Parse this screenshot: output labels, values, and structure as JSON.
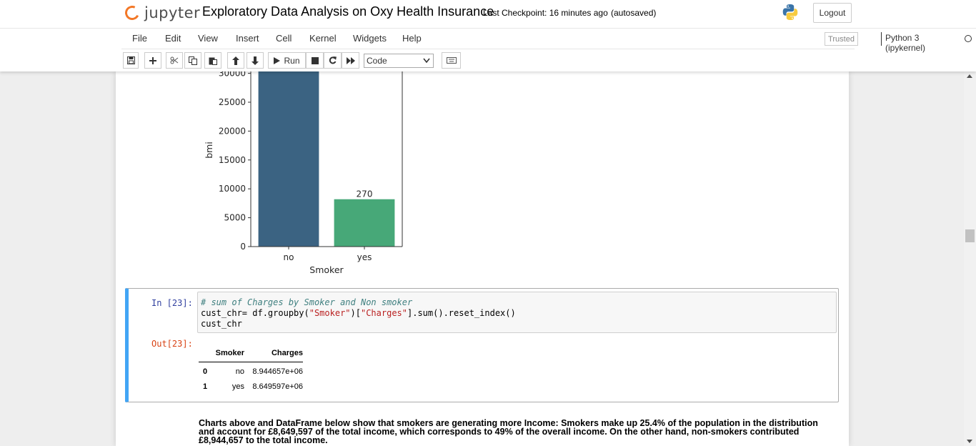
{
  "header": {
    "logo_text": "jupyter",
    "notebook_title": "Exploratory Data Analysis on Oxy Health Insurance",
    "checkpoint": "Last Checkpoint: 16 minutes ago",
    "autosave": "(autosaved)",
    "logout_label": "Logout"
  },
  "menubar": {
    "items": [
      "File",
      "Edit",
      "View",
      "Insert",
      "Cell",
      "Kernel",
      "Widgets",
      "Help"
    ],
    "trusted_label": "Trusted",
    "kernel_name": "Python 3 (ipykernel)"
  },
  "toolbar": {
    "run_label": "Run",
    "cell_type": "Code"
  },
  "chart_data": {
    "type": "bar",
    "categories": [
      "no",
      "yes"
    ],
    "values": [
      32000,
      8200
    ],
    "bar_labels": [
      "",
      "270"
    ],
    "colors": [
      "#3b6382",
      "#47a878"
    ],
    "xlabel": "Smoker",
    "ylabel": "bmi",
    "yticks": [
      0,
      5000,
      10000,
      15000,
      20000,
      25000,
      30000
    ],
    "ytick_labels": [
      "0",
      "5000",
      "10000",
      "15000",
      "20000",
      "25000",
      "30000"
    ],
    "ylim": [
      0,
      35000
    ]
  },
  "cell": {
    "in_prompt": "In [23]:",
    "out_prompt": "Out[23]:",
    "code": {
      "comment": "# sum of Charges by Smoker and Non smoker",
      "line2_a": "cust_chr= df.groupby(",
      "line2_s1": "\"Smoker\"",
      "line2_b": ")[",
      "line2_s2": "\"Charges\"",
      "line2_c": "].sum().reset_index()",
      "line3": "cust_chr"
    },
    "table": {
      "columns": [
        "",
        "Smoker",
        "Charges"
      ],
      "rows": [
        {
          "index": "0",
          "smoker": "no",
          "charges": "8.944657e+06"
        },
        {
          "index": "1",
          "smoker": "yes",
          "charges": "8.649597e+06"
        }
      ]
    }
  },
  "markdown": {
    "text": "Charts above and DataFrame below show that smokers are generating more Income: Smokers make up 25.4% of the population in the distribution and account for £8,649,597 of the total income, which corresponds to 49% of the overall income. On the other hand, non-smokers contributed £8,944,657 to the total income."
  }
}
